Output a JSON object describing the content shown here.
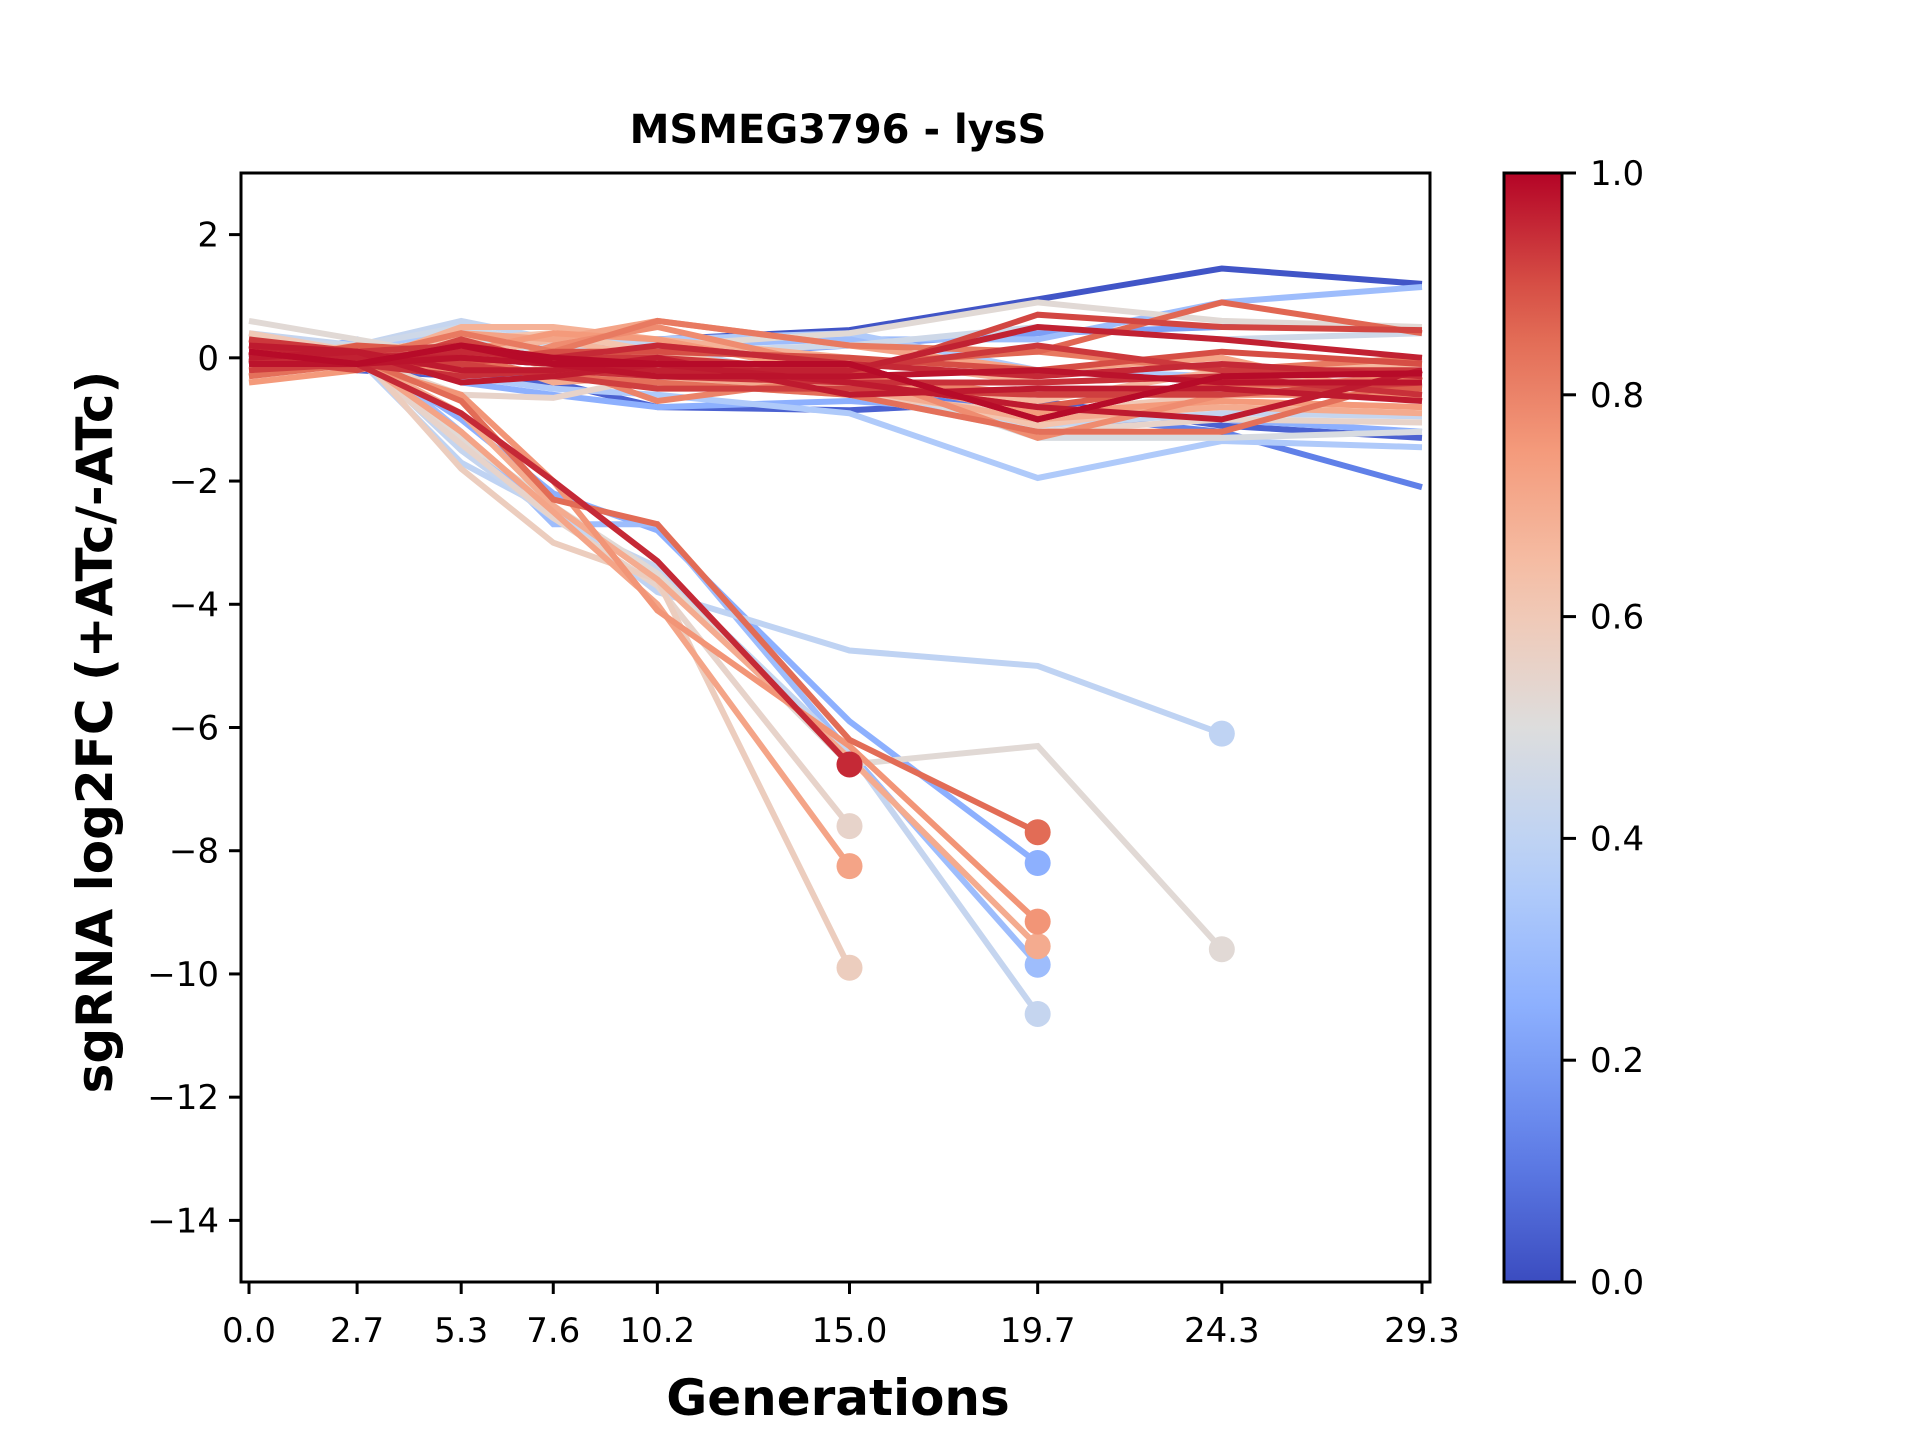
{
  "chart_data": {
    "type": "line",
    "title": "MSMEG3796 - lysS",
    "xlabel": "Generations",
    "ylabel": "sgRNA log2FC (+ATc/-ATc)",
    "x": [
      0.0,
      2.7,
      5.3,
      7.6,
      10.2,
      15.0,
      19.7,
      24.3,
      29.3
    ],
    "x_tick_labels": [
      "0.0",
      "2.7",
      "5.3",
      "7.6",
      "10.2",
      "15.0",
      "19.7",
      "24.3",
      "29.3"
    ],
    "xlim": [
      -0.2,
      29.5
    ],
    "ylim": [
      -15,
      3
    ],
    "y_ticks": [
      2,
      0,
      -2,
      -4,
      -6,
      -8,
      -10,
      -12,
      -14
    ],
    "y_tick_labels": [
      "2",
      "0",
      "−2",
      "−4",
      "−6",
      "−8",
      "−10",
      "−12",
      "−14"
    ],
    "grid": false,
    "colorbar": {
      "colormap": "coolwarm",
      "range": [
        0.0,
        1.0
      ],
      "ticks": [
        0.0,
        0.2,
        0.4,
        0.6,
        0.8,
        1.0
      ],
      "tick_labels": [
        "0.0",
        "0.2",
        "0.4",
        "0.6",
        "0.8",
        "1.0"
      ],
      "placement": "right"
    },
    "series_note": "Each line is one sgRNA colored by its colorbar value; lines that drop out early end with a marker at the last observed point.",
    "series": [
      {
        "c": 0.02,
        "values": [
          0.0,
          0.1,
          0.3,
          0.2,
          0.3,
          0.45,
          0.95,
          1.45,
          1.2
        ],
        "end_marker": false
      },
      {
        "c": 0.3,
        "values": [
          0.0,
          0.2,
          0.1,
          0.0,
          0.2,
          0.3,
          0.3,
          0.9,
          1.15
        ],
        "end_marker": false
      },
      {
        "c": 0.12,
        "values": [
          -0.1,
          0.0,
          -0.2,
          -0.3,
          -0.4,
          -0.5,
          -0.9,
          -1.2,
          -2.1
        ],
        "end_marker": false
      },
      {
        "c": 0.35,
        "values": [
          -0.2,
          -0.1,
          -0.3,
          -0.5,
          -0.6,
          -0.9,
          -1.95,
          -1.35,
          -1.45
        ],
        "end_marker": false
      },
      {
        "c": 0.05,
        "values": [
          0.0,
          -0.2,
          -0.3,
          -0.4,
          -0.8,
          -0.85,
          -0.7,
          -1.1,
          -1.3
        ],
        "end_marker": false
      },
      {
        "c": 0.25,
        "values": [
          -0.1,
          0.3,
          -0.4,
          -0.6,
          -0.8,
          -0.7,
          -0.9,
          -1.0,
          -1.2
        ],
        "end_marker": false
      },
      {
        "c": 0.45,
        "values": [
          0.3,
          0.2,
          0.5,
          0.2,
          0.1,
          0.2,
          0.5,
          0.3,
          0.4
        ],
        "end_marker": false
      },
      {
        "c": 0.52,
        "values": [
          0.6,
          0.3,
          0.0,
          -0.1,
          0.2,
          0.4,
          0.9,
          0.6,
          0.5
        ],
        "end_marker": false
      },
      {
        "c": 0.42,
        "values": [
          0.4,
          0.2,
          0.6,
          0.3,
          0.2,
          -0.5,
          -1.1,
          -0.9,
          -0.95
        ],
        "end_marker": false
      },
      {
        "c": 0.55,
        "values": [
          0.2,
          0.0,
          -0.6,
          -0.65,
          -0.3,
          -0.6,
          -1.2,
          -1.0,
          -1.05
        ],
        "end_marker": false
      },
      {
        "c": 0.62,
        "values": [
          -0.2,
          0.1,
          0.3,
          0.4,
          0.1,
          -0.4,
          -1.1,
          -0.7,
          -0.8
        ],
        "end_marker": false
      },
      {
        "c": 0.68,
        "values": [
          0.1,
          -0.1,
          0.5,
          0.5,
          0.3,
          0.0,
          -0.4,
          -0.3,
          -0.5
        ],
        "end_marker": false
      },
      {
        "c": 0.72,
        "values": [
          0.3,
          0.0,
          0.4,
          0.3,
          0.6,
          0.2,
          -0.2,
          0.0,
          -0.7
        ],
        "end_marker": false
      },
      {
        "c": 0.75,
        "values": [
          -0.4,
          -0.2,
          0.1,
          0.4,
          0.3,
          -0.3,
          -0.9,
          -0.7,
          -0.8
        ],
        "end_marker": false
      },
      {
        "c": 0.78,
        "values": [
          0.2,
          0.1,
          -0.3,
          0.2,
          0.5,
          -0.2,
          -1.3,
          -0.6,
          -0.6
        ],
        "end_marker": false
      },
      {
        "c": 0.8,
        "values": [
          0.0,
          -0.1,
          0.2,
          -0.1,
          -0.7,
          -0.3,
          -0.6,
          -0.5,
          -0.3
        ],
        "end_marker": false
      },
      {
        "c": 0.82,
        "values": [
          0.1,
          0.0,
          0.4,
          0.1,
          0.6,
          0.2,
          0.1,
          -0.2,
          0.0
        ],
        "end_marker": false
      },
      {
        "c": 0.84,
        "values": [
          -0.3,
          -0.1,
          0.0,
          -0.3,
          -0.4,
          -0.6,
          -1.2,
          -1.2,
          -0.3
        ],
        "end_marker": false
      },
      {
        "c": 0.86,
        "values": [
          0.2,
          0.1,
          -0.2,
          -0.2,
          0.2,
          -0.1,
          0.1,
          0.9,
          0.4
        ],
        "end_marker": false
      },
      {
        "c": 0.88,
        "values": [
          -0.1,
          0.2,
          0.1,
          0.0,
          -0.2,
          -0.4,
          -0.8,
          -0.4,
          -0.5
        ],
        "end_marker": false
      },
      {
        "c": 0.9,
        "values": [
          0.1,
          0.0,
          -0.1,
          0.1,
          0.1,
          0.0,
          -0.2,
          0.1,
          -0.1
        ],
        "end_marker": false
      },
      {
        "c": 0.91,
        "values": [
          0.0,
          -0.2,
          0.3,
          -0.1,
          -0.1,
          -0.3,
          0.7,
          0.5,
          0.45
        ],
        "end_marker": false
      },
      {
        "c": 0.92,
        "values": [
          -0.2,
          -0.1,
          -0.1,
          -0.3,
          -0.5,
          -0.5,
          -0.6,
          -0.6,
          -0.4
        ],
        "end_marker": false
      },
      {
        "c": 0.93,
        "values": [
          0.3,
          0.1,
          0.2,
          0.0,
          0.0,
          -0.2,
          0.2,
          -0.2,
          -0.2
        ],
        "end_marker": false
      },
      {
        "c": 0.94,
        "values": [
          0.1,
          -0.1,
          -0.3,
          -0.2,
          -0.3,
          -0.4,
          -0.4,
          -0.3,
          -0.6
        ],
        "end_marker": false
      },
      {
        "c": 0.95,
        "values": [
          -0.1,
          0.0,
          0.1,
          0.0,
          0.2,
          -0.1,
          -0.3,
          -0.1,
          -0.3
        ],
        "end_marker": false
      },
      {
        "c": 0.96,
        "values": [
          0.2,
          0.0,
          0.0,
          -0.1,
          -0.2,
          -0.2,
          0.5,
          0.3,
          0.0
        ],
        "end_marker": false
      },
      {
        "c": 0.97,
        "values": [
          0.0,
          0.1,
          -0.2,
          -0.2,
          0.0,
          -0.6,
          -0.5,
          -0.5,
          -0.7
        ],
        "end_marker": false
      },
      {
        "c": 0.98,
        "values": [
          -0.1,
          -0.1,
          0.0,
          -0.1,
          -0.3,
          -0.3,
          -0.2,
          -0.4,
          -0.4
        ],
        "end_marker": false
      },
      {
        "c": 0.99,
        "values": [
          0.1,
          -0.1,
          0.2,
          0.0,
          -0.1,
          -0.1,
          -1.0,
          -0.3,
          -0.25
        ],
        "end_marker": false
      },
      {
        "c": 0.7,
        "values": [
          -0.3,
          0.0,
          0.1,
          -0.4,
          -0.3,
          -0.5,
          -1.0,
          -0.8,
          -0.9
        ],
        "end_marker": false
      },
      {
        "c": 0.66,
        "values": [
          0.0,
          0.2,
          0.0,
          0.3,
          0.0,
          -0.5,
          -0.7,
          -0.2,
          -0.1
        ],
        "end_marker": false
      },
      {
        "c": 0.6,
        "values": [
          0.4,
          0.1,
          0.3,
          -0.2,
          -0.4,
          -0.6,
          -0.9,
          -0.6,
          -0.6
        ],
        "end_marker": false
      },
      {
        "c": 0.35,
        "values": [
          0.1,
          0.2,
          0.4,
          0.3,
          0.3,
          0.4,
          -0.2,
          -0.3,
          -0.5
        ],
        "end_marker": false
      },
      {
        "c": 0.48,
        "values": [
          0.0,
          -0.1,
          0.3,
          0.1,
          -0.2,
          -0.3,
          -1.3,
          -1.3,
          -1.2
        ],
        "end_marker": false
      },
      {
        "c": 0.2,
        "values": [
          -0.1,
          0.1,
          0.0,
          -0.1,
          0.0,
          0.2,
          0.4,
          0.5,
          0.5
        ],
        "end_marker": false
      },
      {
        "c": 0.97,
        "values": [
          0.2,
          0.1,
          -0.4,
          -0.3,
          -0.1,
          -0.4,
          -0.8,
          -1.0,
          -0.2
        ],
        "end_marker": false
      },
      {
        "c": 0.99,
        "values": [
          0.1,
          -0.1,
          0.2,
          -0.1,
          -0.1,
          -0.1,
          -1.0,
          -0.3,
          -0.25
        ],
        "end_marker": false
      },
      {
        "c": 0.95,
        "values": [
          0.0,
          -0.1,
          -0.9,
          -2.0,
          -3.3,
          -6.6
        ],
        "end_marker": true
      },
      {
        "c": 0.55,
        "values": [
          0.1,
          0.0,
          -1.4,
          -2.6,
          -3.7,
          -7.6
        ],
        "end_marker": true
      },
      {
        "c": 0.72,
        "values": [
          -0.1,
          0.0,
          -1.2,
          -2.5,
          -4.0,
          -8.25
        ],
        "end_marker": true
      },
      {
        "c": 0.58,
        "values": [
          0.3,
          0.1,
          -1.8,
          -3.0,
          -3.6,
          -9.9
        ],
        "end_marker": true
      },
      {
        "c": 0.85,
        "values": [
          0.0,
          0.0,
          -0.7,
          -2.3,
          -2.7,
          -6.2,
          -7.7
        ],
        "end_marker": true
      },
      {
        "c": 0.25,
        "values": [
          0.0,
          0.1,
          -1.0,
          -2.2,
          -2.8,
          -5.9,
          -8.2
        ],
        "end_marker": true
      },
      {
        "c": 0.76,
        "values": [
          0.1,
          -0.1,
          -0.6,
          -2.0,
          -4.1,
          -6.3,
          -9.15
        ],
        "end_marker": true
      },
      {
        "c": 0.7,
        "values": [
          -0.1,
          0.0,
          -0.9,
          -2.4,
          -3.6,
          -6.5,
          -9.55
        ],
        "end_marker": true
      },
      {
        "c": 0.3,
        "values": [
          0.0,
          0.2,
          -1.2,
          -2.7,
          -2.7,
          -6.4,
          -9.85
        ],
        "end_marker": true
      },
      {
        "c": 0.42,
        "values": [
          0.1,
          0.1,
          -1.5,
          -2.6,
          -3.4,
          -6.4,
          -10.65
        ],
        "end_marker": true
      },
      {
        "c": 0.4,
        "values": [
          0.2,
          0.0,
          -1.7,
          -2.5,
          -3.8,
          -4.75,
          -5.0,
          -6.1
        ],
        "end_marker": true
      },
      {
        "c": 0.52,
        "values": [
          0.3,
          0.0,
          -1.3,
          -2.4,
          -3.5,
          -6.6,
          -6.3,
          -9.6
        ],
        "end_marker": true
      }
    ]
  }
}
